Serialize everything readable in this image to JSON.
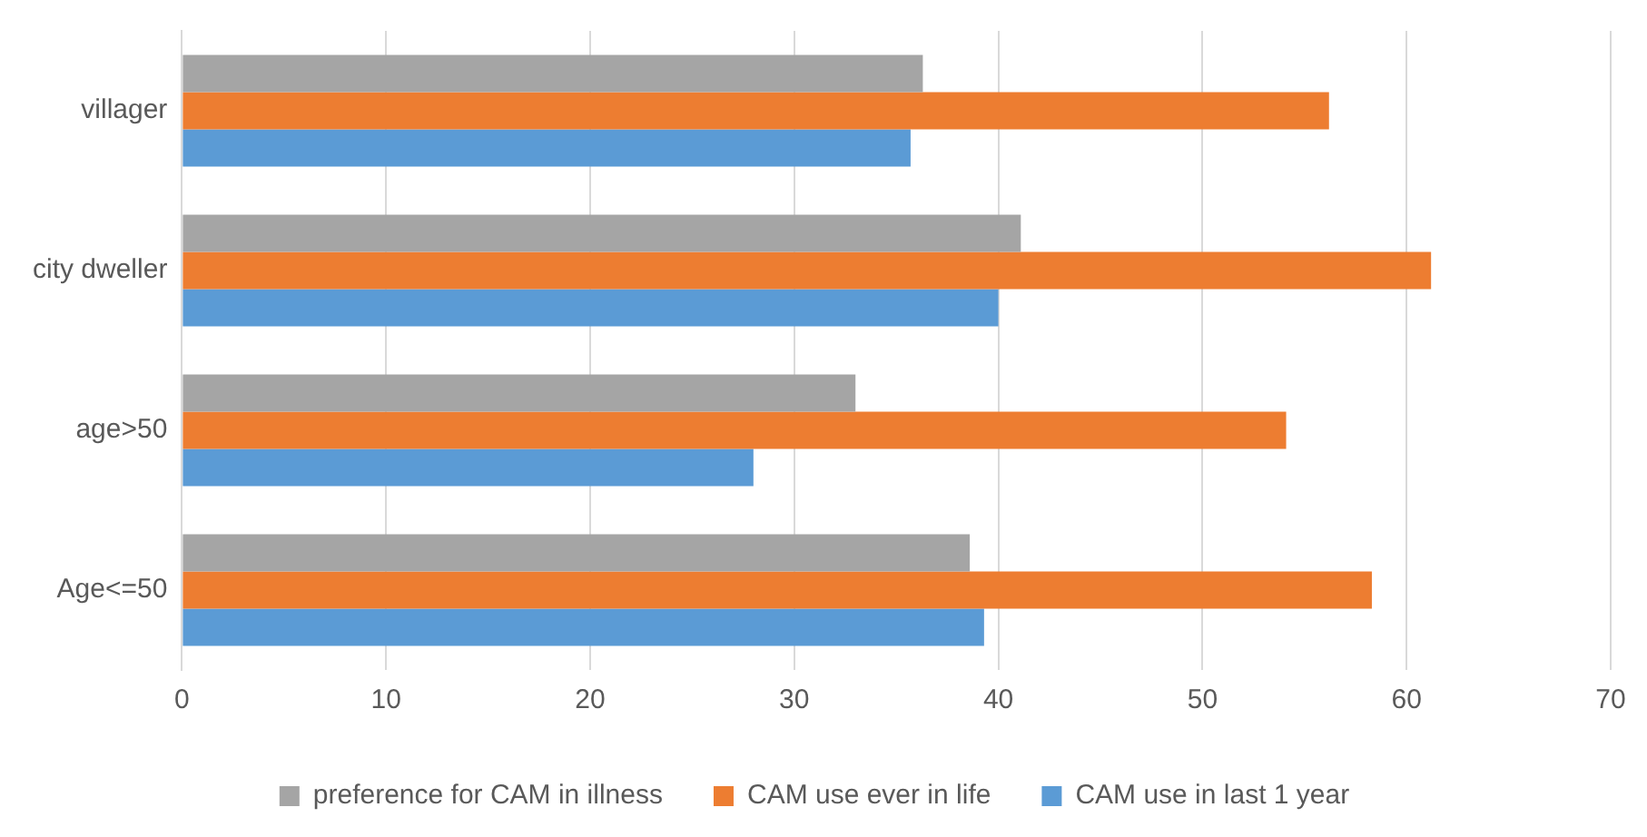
{
  "chart_data": {
    "type": "bar",
    "orientation": "horizontal",
    "categories": [
      "villager",
      "city dweller",
      "age>50",
      "Age<=50"
    ],
    "series": [
      {
        "name": "preference for CAM in illness",
        "color": "#a5a5a5",
        "values": [
          36.3,
          41.1,
          33.0,
          38.6
        ]
      },
      {
        "name": "CAM use ever in life",
        "color": "#ed7d31",
        "values": [
          56.2,
          61.2,
          54.1,
          58.3
        ]
      },
      {
        "name": "CAM use in last 1 year",
        "color": "#5b9bd5",
        "values": [
          35.7,
          40.0,
          28.0,
          39.3
        ]
      }
    ],
    "xlim": [
      0,
      70
    ],
    "xticks": [
      0,
      10,
      20,
      30,
      40,
      50,
      60,
      70
    ],
    "grid": "x",
    "legend": "bottom"
  }
}
